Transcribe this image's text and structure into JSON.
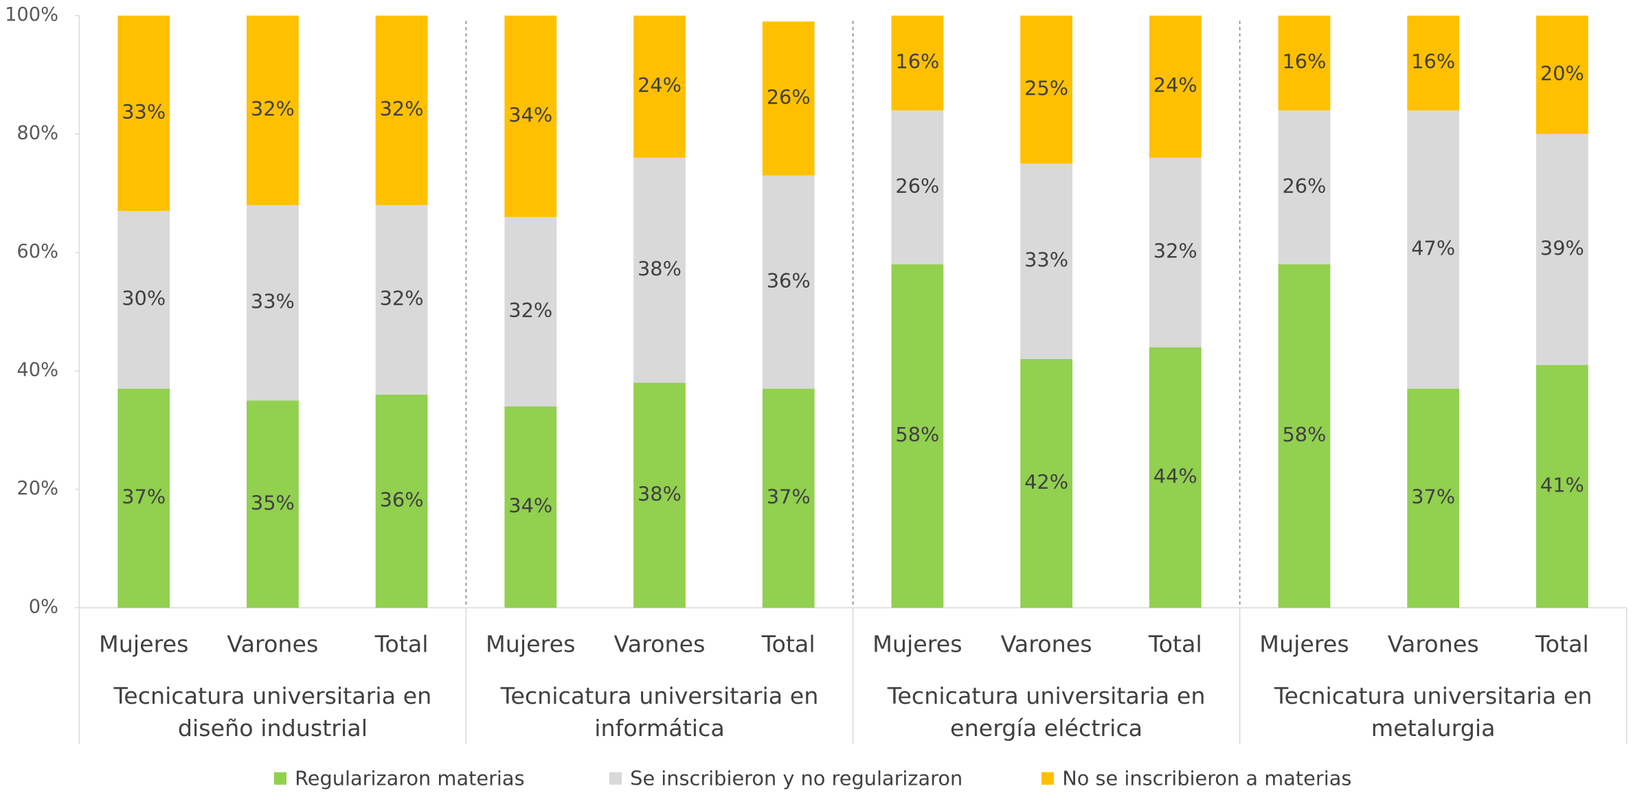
{
  "chart_data": {
    "type": "stacked_bar",
    "categories": [
      "Mujeres",
      "Varones",
      "Total",
      "Mujeres",
      "Varones",
      "Total",
      "Mujeres",
      "Varones",
      "Total",
      "Mujeres",
      "Varones",
      "Total"
    ],
    "groups": [
      [
        "Tecnicatura universitaria en",
        "diseño industrial"
      ],
      [
        "Tecnicatura universitaria en",
        "informática"
      ],
      [
        "Tecnicatura universitaria en",
        "energía eléctrica"
      ],
      [
        "Tecnicatura universitaria en",
        "metalurgia"
      ]
    ],
    "series": [
      {
        "name": "Regularizaron materias",
        "color": "#92d050",
        "values": [
          37,
          35,
          36,
          34,
          38,
          37,
          58,
          42,
          44,
          58,
          37,
          41
        ],
        "value_labels": [
          "37%",
          "35%",
          "36%",
          "34%",
          "38%",
          "37%",
          "58%",
          "42%",
          "44%",
          "58%",
          "37%",
          "41%"
        ]
      },
      {
        "name": "Se inscribieron y no regularizaron",
        "color": "#d9d9d9",
        "values": [
          30,
          33,
          32,
          32,
          38,
          36,
          26,
          33,
          32,
          26,
          47,
          39
        ],
        "value_labels": [
          "30%",
          "33%",
          "32%",
          "32%",
          "38%",
          "36%",
          "26%",
          "33%",
          "32%",
          "26%",
          "47%",
          "39%"
        ]
      },
      {
        "name": "No se inscribieron a materias",
        "color": "#ffc000",
        "values": [
          33,
          32,
          32,
          34,
          24,
          26,
          16,
          25,
          24,
          16,
          16,
          20
        ],
        "value_labels": [
          "33%",
          "32%",
          "32%",
          "34%",
          "24%",
          "26%",
          "16%",
          "25%",
          "24%",
          "16%",
          "16%",
          "20%"
        ]
      }
    ],
    "ylim": [
      0,
      100
    ],
    "yticks": [
      {
        "value": 0,
        "label": "0%"
      },
      {
        "value": 20,
        "label": "20%"
      },
      {
        "value": 40,
        "label": "40%"
      },
      {
        "value": 60,
        "label": "60%"
      },
      {
        "value": 80,
        "label": "80%"
      },
      {
        "value": 100,
        "label": "100%"
      }
    ],
    "legend": "bottom"
  }
}
